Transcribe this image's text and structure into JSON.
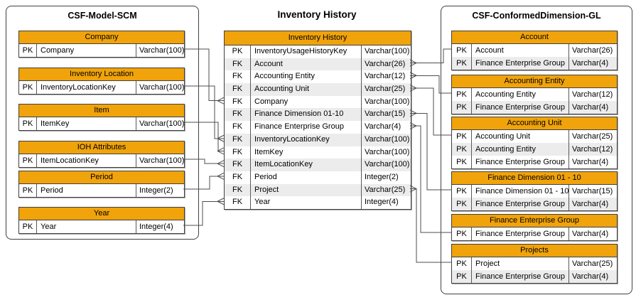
{
  "diagram_title": "Inventory History",
  "left_group": {
    "title": "CSF-Model-SCM",
    "tables": [
      {
        "title": "Company",
        "rows": [
          {
            "key": "PK",
            "name": "Company",
            "type": "Varchar(100)"
          }
        ]
      },
      {
        "title": "Inventory Location",
        "rows": [
          {
            "key": "PK",
            "name": "InventoryLocationKey",
            "type": "Varchar(100)"
          }
        ]
      },
      {
        "title": "Item",
        "rows": [
          {
            "key": "PK",
            "name": "ItemKey",
            "type": "Varchar(100)"
          }
        ]
      },
      {
        "title": "IOH Attributes",
        "rows": [
          {
            "key": "PK",
            "name": "ItemLocationKey",
            "type": "Varchar(100)"
          }
        ]
      },
      {
        "title": "Period",
        "rows": [
          {
            "key": "PK",
            "name": "Period",
            "type": "Integer(2)"
          }
        ]
      },
      {
        "title": "Year",
        "rows": [
          {
            "key": "PK",
            "name": "Year",
            "type": "Integer(4)"
          }
        ]
      }
    ]
  },
  "main_table": {
    "title": "Inventory History",
    "rows": [
      {
        "key": "PK",
        "name": "InventoryUsageHistoryKey",
        "type": "Varchar(100)"
      },
      {
        "key": "FK",
        "name": "Account",
        "type": "Varchar(26)"
      },
      {
        "key": "FK",
        "name": "Accounting Entity",
        "type": "Varchar(12)"
      },
      {
        "key": "FK",
        "name": "Accounting Unit",
        "type": "Varchar(25)"
      },
      {
        "key": "FK",
        "name": "Company",
        "type": "Varchar(100)"
      },
      {
        "key": "FK",
        "name": "Finance Dimension 01-10",
        "type": "Varchar(15)"
      },
      {
        "key": "FK",
        "name": "Finance Enterprise Group",
        "type": "Varchar(4)"
      },
      {
        "key": "FK",
        "name": "InventoryLocationKey",
        "type": "Varchar(100)"
      },
      {
        "key": "FK",
        "name": "ItemKey",
        "type": "Varchar(100)"
      },
      {
        "key": "FK",
        "name": "ItemLocationKey",
        "type": "Varchar(100)"
      },
      {
        "key": "FK",
        "name": "Period",
        "type": "Integer(2)"
      },
      {
        "key": "FK",
        "name": "Project",
        "type": "Varchar(25)"
      },
      {
        "key": "FK",
        "name": "Year",
        "type": "Integer(4)"
      }
    ]
  },
  "right_group": {
    "title": "CSF-ConformedDimension-GL",
    "tables": [
      {
        "title": "Account",
        "rows": [
          {
            "key": "PK",
            "name": "Account",
            "type": "Varchar(26)"
          },
          {
            "key": "PK",
            "name": "Finance Enterprise Group",
            "type": "Varchar(4)"
          }
        ]
      },
      {
        "title": "Accounting Entity",
        "rows": [
          {
            "key": "PK",
            "name": "Accounting Entity",
            "type": "Varchar(12)"
          },
          {
            "key": "PK",
            "name": "Finance Enterprise Group",
            "type": "Varchar(4)"
          }
        ]
      },
      {
        "title": "Accounting Unit",
        "rows": [
          {
            "key": "PK",
            "name": "Accounting Unit",
            "type": "Varchar(25)"
          },
          {
            "key": "PK",
            "name": "Accounting Entity",
            "type": "Varchar(12)"
          },
          {
            "key": "PK",
            "name": "Finance Enterprise Group",
            "type": "Varchar(4)"
          }
        ]
      },
      {
        "title": "Finance Dimension 01 - 10",
        "rows": [
          {
            "key": "PK",
            "name": "Finance Dimension 01 - 10",
            "type": "Varchar(15)"
          },
          {
            "key": "PK",
            "name": "Finance Enterprise Group",
            "type": "Varchar(4)"
          }
        ]
      },
      {
        "title": "Finance Enterprise Group",
        "rows": [
          {
            "key": "PK",
            "name": "Finance Enterprise Group",
            "type": "Varchar(4)"
          }
        ]
      },
      {
        "title": "Projects",
        "rows": [
          {
            "key": "PK",
            "name": "Project",
            "type": "Varchar(25)"
          },
          {
            "key": "PK",
            "name": "Finance Enterprise Group",
            "type": "Varchar(4)"
          }
        ]
      }
    ]
  },
  "relationships": {
    "left": [
      {
        "from_table": "Company",
        "to_field": "Company"
      },
      {
        "from_table": "Inventory Location",
        "to_field": "InventoryLocationKey"
      },
      {
        "from_table": "Item",
        "to_field": "ItemKey"
      },
      {
        "from_table": "IOH Attributes",
        "to_field": "ItemLocationKey"
      },
      {
        "from_table": "Period",
        "to_field": "Period"
      },
      {
        "from_table": "Year",
        "to_field": "Year"
      }
    ],
    "right": [
      {
        "from_field": "Account",
        "to_table": "Account"
      },
      {
        "from_field": "Accounting Entity",
        "to_table": "Accounting Entity"
      },
      {
        "from_field": "Accounting Unit",
        "to_table": "Accounting Unit"
      },
      {
        "from_field": "Finance Dimension 01-10",
        "to_table": "Finance Dimension 01 - 10"
      },
      {
        "from_field": "Finance Enterprise Group",
        "to_table": "Finance Enterprise Group"
      },
      {
        "from_field": "Project",
        "to_table": "Projects"
      }
    ]
  },
  "colors": {
    "header_fill": "#F0A30A",
    "row_alt_fill": "#ECECEC",
    "border": "#404040",
    "connector": "#4D4D4D",
    "background": "#FFFFFF"
  }
}
